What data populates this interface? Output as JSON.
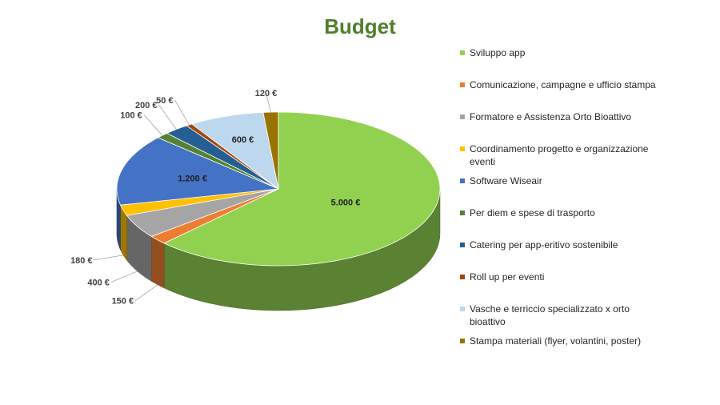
{
  "chart_data": {
    "type": "pie",
    "title": "Budget",
    "categories": [
      "Sviluppo app",
      "Comunicazione, campagne e ufficio stampa",
      "Formatore e Assistenza Orto Bioattivo",
      "Coordinamento progetto e organizzazione eventi",
      "Software Wiseair",
      "Per diem e spese di trasporto",
      "Catering per app-eritivo sostenibile",
      "Roll up per eventi",
      "Vasche e terriccio specializzato x orto bioattivo",
      "Stampa materiali (flyer, volantini, poster)"
    ],
    "values": [
      5000,
      150,
      400,
      180,
      1200,
      100,
      200,
      50,
      600,
      120
    ],
    "data_labels": [
      "5.000 €",
      "150 €",
      "400 €",
      "180 €",
      "1.200 €",
      "100 €",
      "200 €",
      "50 €",
      "600 €",
      "120 €"
    ],
    "colors": [
      "#92d050",
      "#ed7d31",
      "#a5a5a5",
      "#ffc000",
      "#4472c4",
      "#548235",
      "#255e91",
      "#9e480e",
      "#bdd7ee",
      "#997300"
    ],
    "style": "3d",
    "legend_position": "right"
  }
}
